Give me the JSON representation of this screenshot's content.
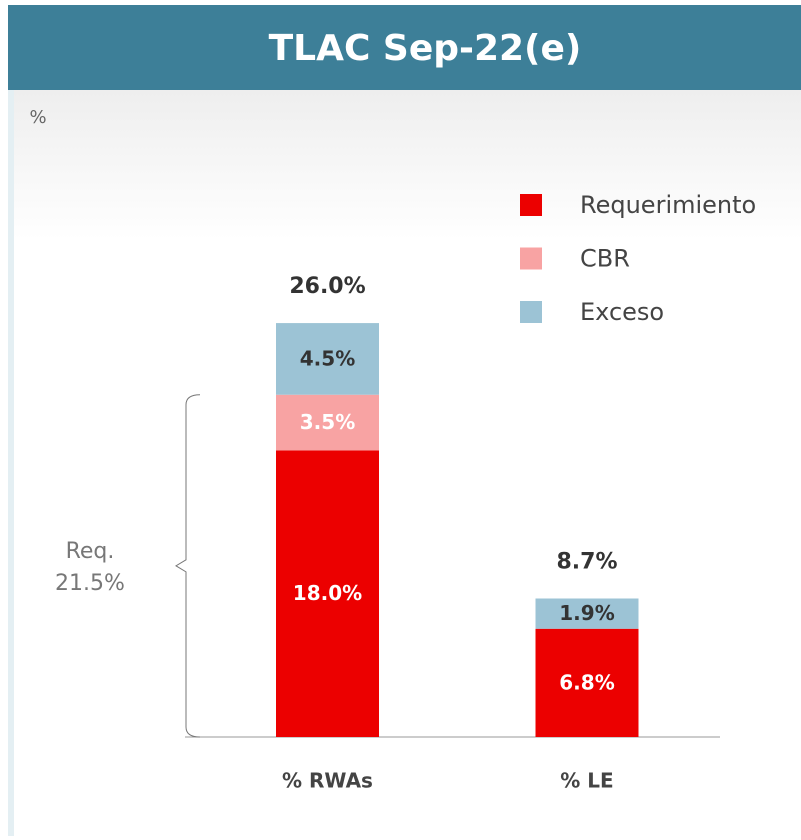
{
  "chart_data": {
    "type": "stacked_bar",
    "title": "TLAC Sep-22(e)",
    "unit_label": "%",
    "categories": [
      "% RWAs",
      "% LE"
    ],
    "series": [
      {
        "name": "Requerimiento",
        "color": "#ec0000",
        "values": [
          18.0,
          6.8
        ],
        "value_labels": [
          "18.0%",
          "6.8%"
        ],
        "label_color": "#ffffff"
      },
      {
        "name": "CBR",
        "color": "#f8a3a3",
        "values": [
          3.5,
          null
        ],
        "value_labels": [
          "3.5%",
          null
        ],
        "label_color": "#ffffff"
      },
      {
        "name": "Exceso",
        "color": "#9cc3d5",
        "values": [
          4.5,
          1.9
        ],
        "value_labels": [
          "4.5%",
          "1.9%"
        ],
        "label_color": "#333333"
      }
    ],
    "totals": [
      26.0,
      8.7
    ],
    "total_labels": [
      "26.0%",
      "8.7%"
    ],
    "bracket": {
      "label": "Req.",
      "value": 21.5,
      "value_label": "21.5%"
    },
    "legend": "top-right"
  }
}
